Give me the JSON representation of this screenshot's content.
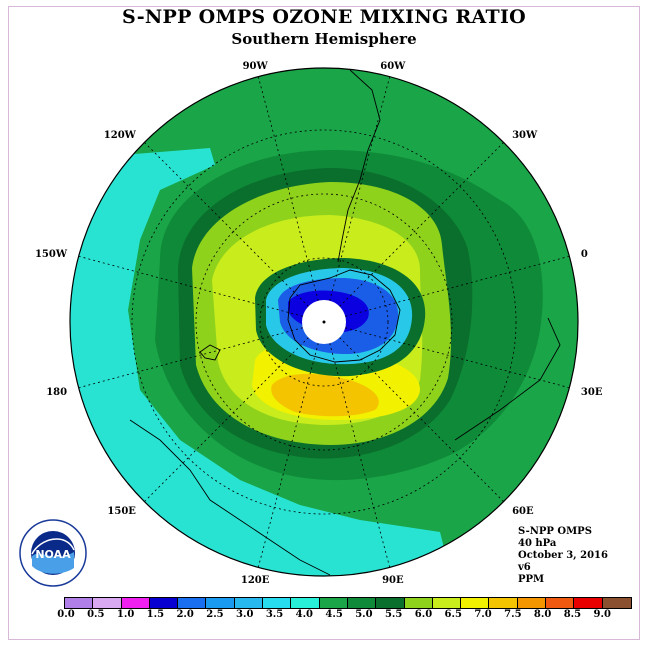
{
  "header": {
    "title": "S-NPP OMPS OZONE MIXING RATIO",
    "subtitle": "Southern Hemisphere"
  },
  "map": {
    "projection": "south-polar-stereographic",
    "contour_fill_colors": {
      "3.5": "#28e3d2",
      "4.0": "#1aa548",
      "4.5": "#0f8a38",
      "5.0": "#0a6e2c",
      "5.5": "#8fd21c",
      "6.0": "#c8ec1c",
      "6.5": "#f2f200",
      "7.0": "#f4c400",
      "ozone_hole_low": "#0a00e0",
      "ozone_hole_mid": "#1a5ee8",
      "ozone_hole_edge": "#28c8e8"
    },
    "longitude_labels": [
      {
        "text": "90W"
      },
      {
        "text": "60W"
      },
      {
        "text": "30W"
      },
      {
        "text": "0"
      },
      {
        "text": "30E"
      },
      {
        "text": "60E"
      },
      {
        "text": "90E"
      },
      {
        "text": "120E"
      },
      {
        "text": "150E"
      },
      {
        "text": "180"
      },
      {
        "text": "150W"
      },
      {
        "text": "120W"
      }
    ]
  },
  "info": {
    "instrument": "S-NPP OMPS",
    "level": "40 hPa",
    "date": "October 3, 2016",
    "version": "v6",
    "units": "PPM"
  },
  "logo": {
    "text": "NOAA",
    "ring_text": "NATIONAL OCEANIC AND ATMOSPHERIC ADMINISTRATION · U.S. DEPARTMENT OF COMMERCE"
  },
  "colorbar": {
    "colors": [
      "#b080e8",
      "#d8a8f0",
      "#f020f0",
      "#0800d0",
      "#1a6ef0",
      "#1a9af0",
      "#28b8f0",
      "#28dcf0",
      "#28f0d8",
      "#1aa548",
      "#0f8a38",
      "#0a6e2c",
      "#8fd21c",
      "#c8ec1c",
      "#f2f200",
      "#f4c400",
      "#f49600",
      "#f05a10",
      "#e80000",
      "#8a5030"
    ],
    "tick_labels": [
      "0.0",
      "0.5",
      "1.0",
      "1.5",
      "2.0",
      "2.5",
      "3.0",
      "3.5",
      "4.0",
      "4.5",
      "5.0",
      "5.5",
      "6.0",
      "6.5",
      "7.0",
      "7.5",
      "8.0",
      "8.5",
      "9.0"
    ]
  }
}
